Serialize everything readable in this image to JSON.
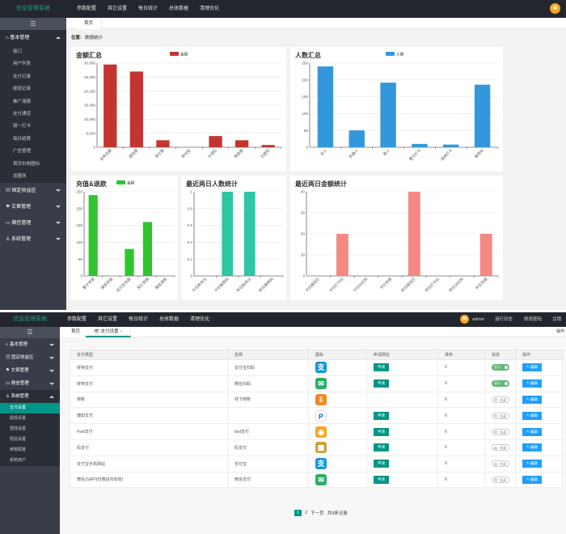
{
  "shot1": {
    "logo": "信息管理系统",
    "nav": [
      "参数配置",
      "其它设置",
      "每日统计",
      "总体数据",
      "清理优化"
    ],
    "sidebar": {
      "toggle": "☰",
      "sections": [
        {
          "label": "基本管理",
          "icon": "home-icon",
          "open": true,
          "items": [
            "接口",
            "用户列表",
            "支付记录",
            "提现记录",
            "推广海报",
            "支付通道",
            "骑一打卡",
            "每日结算",
            "广告管理",
            "首页右侧图标",
            "加盟商"
          ]
        },
        {
          "label": "固定收益区",
          "icon": "file-icon",
          "open": false
        },
        {
          "label": "文章管理",
          "icon": "flag-icon",
          "open": false
        },
        {
          "label": "微信管理",
          "icon": "chat-icon",
          "open": false
        },
        {
          "label": "系统管理",
          "icon": "user-icon",
          "open": false
        }
      ]
    },
    "tab": "首页",
    "crumb_label": "位置:",
    "crumb_value": "数据统计"
  },
  "shot2": {
    "logo": "信息管理系统",
    "nav": [
      "参数配置",
      "其它设置",
      "每日统计",
      "总体数据",
      "清理优化"
    ],
    "user": "admin",
    "right_links": [
      "运行日志",
      "修改密码",
      "注销"
    ],
    "sidebar": {
      "toggle": "☰",
      "sections": [
        {
          "label": "基本管理",
          "open": false
        },
        {
          "label": "固定收益区",
          "open": false
        },
        {
          "label": "文章管理",
          "open": false
        },
        {
          "label": "微信管理",
          "open": false
        },
        {
          "label": "系统管理",
          "open": true,
          "items": [
            "支付设置",
            "提现设置",
            "登陆设置",
            "短信设置",
            "参数配置",
            "系统用户"
          ]
        }
      ]
    },
    "tabs": [
      "首页",
      "支付设置"
    ],
    "tab_close": "×",
    "ops_label": "操作",
    "table": {
      "headers": [
        "支付类型",
        "名称",
        "图标",
        "申请网址",
        "排序",
        "状态",
        "操作"
      ],
      "apply_label": "申请",
      "edit_label": "编辑",
      "on_label": "显示",
      "off_label": "隐藏",
      "rows": [
        {
          "type": "拼特支付",
          "name": "支付宝扫码",
          "icon": "alipay-icon",
          "apply": true,
          "sort": "0",
          "on": true
        },
        {
          "type": "拼特支付",
          "name": "微信扫码",
          "icon": "wechat-icon",
          "apply": true,
          "sort": "0",
          "on": true
        },
        {
          "type": "转账",
          "name": "线下转账",
          "icon": "transfer-icon",
          "apply": false,
          "sort": "0",
          "on": false
        },
        {
          "type": "捷如支付",
          "name": "",
          "icon": "paypal-icon",
          "apply": true,
          "sort": "0",
          "on": false
        },
        {
          "type": "Fast支付",
          "name": "fast支付",
          "icon": "fast-pay-icon",
          "apply": true,
          "sort": "0",
          "on": false
        },
        {
          "type": "码支付",
          "name": "码支付",
          "icon": "code-pay-icon",
          "apply": true,
          "sort": "0",
          "on": false
        },
        {
          "type": "支付宝手机网站",
          "name": "支付宝",
          "icon": "alipay-icon",
          "apply": true,
          "sort": "0",
          "on": false
        },
        {
          "type": "微信JSAPI(仅微信内有效)",
          "name": "微信支付",
          "icon": "wechat-icon",
          "apply": true,
          "sort": "0",
          "on": false
        }
      ],
      "pager": [
        "1",
        "2",
        "下一页",
        "共9条记录"
      ]
    }
  },
  "chart_data": [
    {
      "type": "bar",
      "title": "金额汇总",
      "legend": "金额",
      "color": "#c23531",
      "categories": [
        "总体总额",
        "虚拟提",
        "其它提",
        "体验金",
        "分润红",
        "佣金提",
        "已提现"
      ],
      "values": [
        29500,
        27000,
        2500,
        0,
        4000,
        2500,
        800
      ],
      "ylim": [
        0,
        30000
      ],
      "yticks": [
        0,
        5000,
        10000,
        15000,
        20000,
        25000,
        30000
      ]
    },
    {
      "type": "bar",
      "title": "人数汇总",
      "legend": "人数",
      "color": "#3398db",
      "categories": [
        "总人",
        "机器人",
        "真人",
        "累计打卡",
        "连续打卡",
        "推荐好"
      ],
      "values": [
        240,
        50,
        192,
        10,
        8,
        186
      ],
      "ylim": [
        0,
        250
      ],
      "yticks": [
        0,
        50,
        100,
        150,
        200,
        250
      ]
    },
    {
      "type": "bar",
      "title": "充值&退款",
      "legend": "金额",
      "color": "#2fc52f",
      "categories": [
        "累计充值",
        "微信充值",
        "支付宝充值",
        "其它充值",
        "微信退款"
      ],
      "values": [
        240,
        0,
        80,
        160,
        0
      ],
      "ylim": [
        0,
        250
      ],
      "yticks": [
        0,
        50,
        100,
        150,
        200,
        250
      ]
    },
    {
      "type": "bar",
      "title": "最近两日人数统计",
      "legend": "",
      "color": "#2ec7a4",
      "categories": [
        "今日新充注",
        "今日推荐码",
        "昨日新充注",
        "昨日推荐码"
      ],
      "values": [
        0,
        1,
        1,
        0
      ],
      "ylim": [
        0,
        1
      ],
      "yticks": [
        0,
        0.2,
        0.4,
        0.6,
        0.8,
        1
      ]
    },
    {
      "type": "bar",
      "title": "最近两日金额统计",
      "legend": "",
      "color": "#f48883",
      "categories": [
        "今日提现打",
        "今日打卡红",
        "今日分红利",
        "今日充值",
        "昨日提现打",
        "昨日打卡红",
        "昨日分红利",
        "昨日充值"
      ],
      "values": [
        0,
        20,
        0,
        0,
        40,
        0,
        0,
        20
      ],
      "ylim": [
        0,
        40
      ],
      "yticks": [
        0,
        10,
        20,
        30,
        40
      ]
    }
  ]
}
